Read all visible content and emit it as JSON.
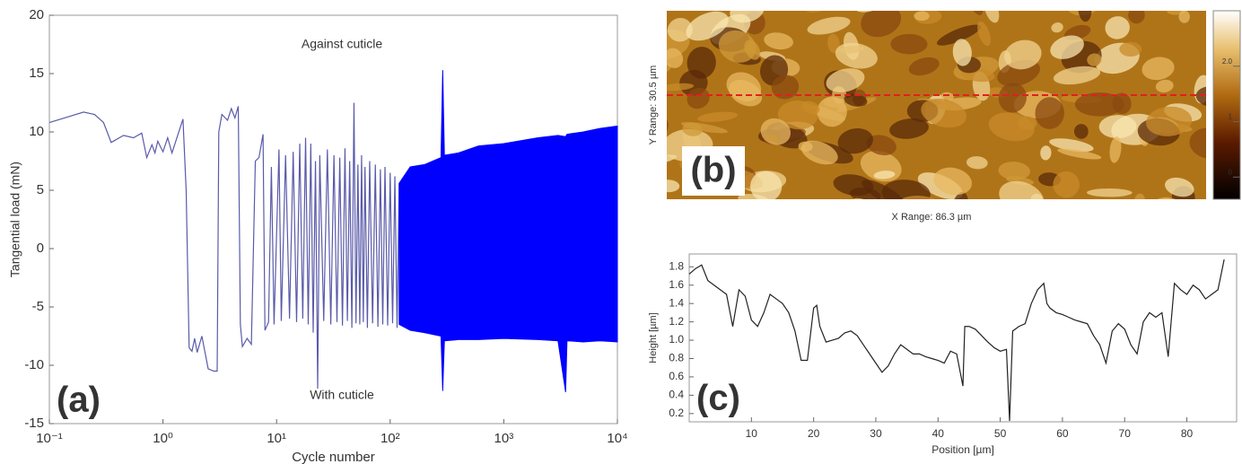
{
  "chart_data": [
    {
      "type": "line",
      "panel_label": "(a)",
      "x_label": "Cycle number",
      "y_label": "Tangential load (mN)",
      "annotations": [
        "Against cuticle",
        "With cuticle"
      ],
      "xscale": "log",
      "xlim": [
        0.1,
        10000
      ],
      "ylim": [
        -15,
        20
      ],
      "xticks": [
        {
          "value": 0.1,
          "label": "10⁻¹"
        },
        {
          "value": 1,
          "label": "10⁰"
        },
        {
          "value": 10,
          "label": "10¹"
        },
        {
          "value": 100,
          "label": "10²"
        },
        {
          "value": 1000,
          "label": "10³"
        },
        {
          "value": 10000,
          "label": "10⁴"
        }
      ],
      "yticks": [
        -15,
        -10,
        -5,
        0,
        5,
        10,
        15,
        20
      ],
      "series": [
        {
          "color": "#5a5aaa",
          "x": [
            0.1,
            0.2,
            0.25,
            0.3,
            0.35,
            0.45,
            0.55,
            0.65,
            0.72,
            0.8,
            0.85,
            0.9,
            1.0,
            1.1,
            1.2,
            1.5,
            1.6,
            1.7,
            1.8,
            1.9,
            2.0,
            2.2,
            2.5,
            2.8,
            3.0,
            3.1,
            3.3,
            3.7,
            4.0,
            4.3,
            4.6,
            4.8,
            5.0,
            5.5,
            6.0,
            6.5,
            7.0,
            7.6,
            7.9,
            8.5,
            9.0,
            9.5,
            10.5,
            11,
            12,
            13,
            14,
            15,
            16,
            17,
            18,
            19,
            20,
            21,
            22,
            23,
            24,
            26,
            28,
            30,
            32,
            34,
            36,
            38,
            40,
            42,
            44,
            46,
            48,
            50,
            52,
            54,
            56,
            58,
            60,
            63,
            66,
            70,
            74,
            78,
            82,
            86,
            90,
            95,
            100,
            105,
            110,
            115,
            120
          ],
          "values": [
            10.8,
            11.7,
            11.5,
            10.8,
            9.1,
            9.7,
            9.5,
            9.9,
            7.8,
            8.9,
            8.2,
            9.2,
            8.3,
            9.5,
            8.2,
            11.1,
            5,
            -8.5,
            -8.8,
            -7.7,
            -8.9,
            -7.5,
            -10.3,
            -10.5,
            -10.5,
            10.0,
            11.5,
            11.0,
            12.0,
            11.2,
            12.2,
            -6.5,
            -8.4,
            -7.7,
            -8.2,
            7.5,
            7.8,
            9.8,
            -7.0,
            -6.3,
            7.0,
            -6.5,
            8.5,
            -6.2,
            8.0,
            -6.0,
            8.3,
            -6.3,
            9.0,
            -6.0,
            9.5,
            -6.5,
            9.0,
            -7.2,
            7.5,
            -12.0,
            8.0,
            -6.2,
            8.5,
            -6.5,
            8.0,
            -6.3,
            7.8,
            -6.6,
            8.6,
            -6.2,
            7.5,
            -6.8,
            12.5,
            -6.4,
            7.2,
            -6.5,
            8.0,
            -6.3,
            7.0,
            -6.8,
            7.5,
            -6.4,
            7.2,
            -6.7,
            6.8,
            -6.5,
            7.0,
            -6.6,
            6.5,
            -6.4,
            6.2,
            -6.8,
            5.6
          ]
        },
        {
          "color": "#0000ff",
          "x": [
            120,
            150,
            200,
            280,
            290,
            300,
            400,
            600,
            1000,
            2000,
            3000,
            3500,
            3600,
            5000,
            7000,
            10000
          ],
          "values": [
            5.6,
            7.0,
            7.2,
            7.8,
            15.3,
            8.0,
            8.2,
            8.8,
            9.0,
            9.5,
            9.7,
            9.6,
            9.8,
            10.0,
            10.3,
            10.5
          ],
          "lows": [
            -6.5,
            -7.0,
            -7.2,
            -7.5,
            -12.2,
            -7.9,
            -7.8,
            -7.8,
            -7.7,
            -7.8,
            -7.9,
            -12.3,
            -7.9,
            -8.0,
            -7.9,
            -8.0
          ]
        }
      ]
    },
    {
      "type": "image",
      "panel_label": "(b)",
      "x_label": "X Range:  86.3 µm",
      "y_label": "Y Range:  30.5 µm",
      "colorbar": {
        "ylim": [
          -0.4,
          3.0
        ],
        "yticks": [
          0,
          1,
          {
            "value": 2,
            "label": "2.0"
          }
        ]
      }
    },
    {
      "type": "line",
      "panel_label": "(c)",
      "x_label": "Position [µm]",
      "y_label": "Height [µm]",
      "xlim": [
        0,
        88
      ],
      "ylim": [
        0.11,
        1.94
      ],
      "xticks": [
        10,
        20,
        30,
        40,
        50,
        60,
        70,
        80
      ],
      "yticks": [
        0.2,
        0.4,
        0.6,
        0.8,
        {
          "value": 1,
          "label": "1.0"
        },
        1.2,
        1.4,
        1.6,
        1.8
      ],
      "series": [
        {
          "color": "#222222",
          "x": [
            0,
            1,
            2,
            3,
            4,
            5,
            6,
            7,
            8,
            9,
            10,
            11,
            12,
            13,
            14,
            15,
            16,
            17,
            18,
            19,
            20,
            20.5,
            21,
            22,
            23,
            24,
            25,
            26,
            27,
            28,
            29,
            30,
            31,
            32,
            33,
            34,
            35,
            36,
            37,
            38,
            39,
            40,
            41,
            42,
            43,
            44,
            44.3,
            45,
            46,
            47,
            48,
            49,
            50,
            51,
            51.5,
            52,
            53,
            54,
            55,
            56,
            57,
            57.5,
            58,
            59,
            60,
            61,
            62,
            63,
            64,
            65,
            66,
            67,
            68,
            69,
            70,
            71,
            72,
            73,
            74,
            75,
            76,
            77,
            78,
            79,
            80,
            81,
            82,
            83,
            84,
            85,
            86
          ],
          "values": [
            1.72,
            1.78,
            1.82,
            1.65,
            1.6,
            1.55,
            1.5,
            1.15,
            1.55,
            1.48,
            1.22,
            1.15,
            1.3,
            1.5,
            1.45,
            1.4,
            1.3,
            1.1,
            0.78,
            0.78,
            1.35,
            1.38,
            1.15,
            0.98,
            1.0,
            1.02,
            1.08,
            1.1,
            1.05,
            0.95,
            0.85,
            0.75,
            0.65,
            0.72,
            0.85,
            0.95,
            0.9,
            0.85,
            0.85,
            0.82,
            0.8,
            0.78,
            0.75,
            0.88,
            0.85,
            0.5,
            1.15,
            1.15,
            1.12,
            1.05,
            0.98,
            0.92,
            0.88,
            0.9,
            0.12,
            1.1,
            1.15,
            1.18,
            1.4,
            1.55,
            1.62,
            1.4,
            1.35,
            1.3,
            1.28,
            1.25,
            1.22,
            1.2,
            1.18,
            1.05,
            0.95,
            0.75,
            1.1,
            1.18,
            1.12,
            0.95,
            0.85,
            1.2,
            1.3,
            1.25,
            1.3,
            0.82,
            1.62,
            1.55,
            1.5,
            1.6,
            1.55,
            1.45,
            1.5,
            1.55,
            1.88
          ]
        }
      ]
    }
  ]
}
